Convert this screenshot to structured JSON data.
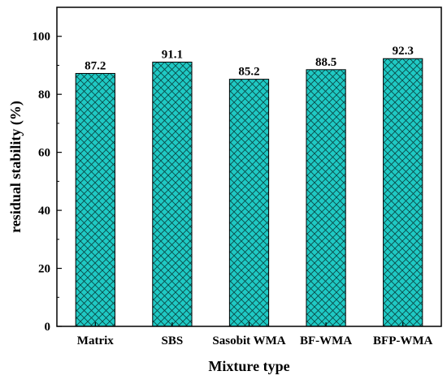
{
  "chart_data": {
    "type": "bar",
    "title": "",
    "xlabel": "Mixture type",
    "ylabel": "residual stability (%)",
    "categories": [
      "Matrix",
      "SBS",
      "Sasobit WMA",
      "BF-WMA",
      "BFP-WMA"
    ],
    "values": [
      87.2,
      91.1,
      85.2,
      88.5,
      92.3
    ],
    "value_labels": [
      "87.2",
      "91.1",
      "85.2",
      "88.5",
      "92.3"
    ],
    "ylim": [
      0,
      110
    ],
    "yticks": [
      0,
      20,
      40,
      60,
      80,
      100
    ],
    "ytick_labels": [
      "0",
      "20",
      "40",
      "60",
      "80",
      "100"
    ],
    "grid": false,
    "legend": "none",
    "bar_fill": "#1fc9c4",
    "bar_pattern": "cross-hatch",
    "hatch_color": "#0a4a48",
    "edge_color": "#000000"
  }
}
